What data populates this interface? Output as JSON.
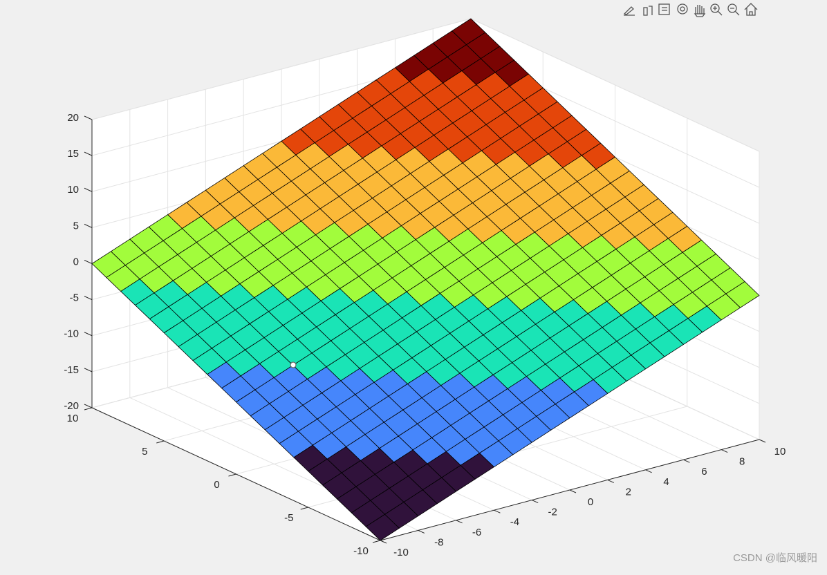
{
  "chart_data": {
    "type": "surface",
    "x": [
      -10,
      -9,
      -8,
      -7,
      -6,
      -5,
      -4,
      -3,
      -2,
      -1,
      0,
      1,
      2,
      3,
      4,
      5,
      6,
      7,
      8,
      9,
      10
    ],
    "y": [
      -10,
      -9,
      -8,
      -7,
      -6,
      -5,
      -4,
      -3,
      -2,
      -1,
      0,
      1,
      2,
      3,
      4,
      5,
      6,
      7,
      8,
      9,
      10
    ],
    "z": [
      [
        -20,
        -19,
        -18,
        -17,
        -16,
        -15,
        -14,
        -13,
        -12,
        -11,
        -10,
        -9,
        -8,
        -7,
        -6,
        -5,
        -4,
        -3,
        -2,
        -1,
        0
      ],
      [
        -19,
        -18,
        -17,
        -16,
        -15,
        -14,
        -13,
        -12,
        -11,
        -10,
        -9,
        -8,
        -7,
        -6,
        -5,
        -4,
        -3,
        -2,
        -1,
        0,
        1
      ],
      [
        -18,
        -17,
        -16,
        -15,
        -14,
        -13,
        -12,
        -11,
        -10,
        -9,
        -8,
        -7,
        -6,
        -5,
        -4,
        -3,
        -2,
        -1,
        0,
        1,
        2
      ],
      [
        -17,
        -16,
        -15,
        -14,
        -13,
        -12,
        -11,
        -10,
        -9,
        -8,
        -7,
        -6,
        -5,
        -4,
        -3,
        -2,
        -1,
        0,
        1,
        2,
        3
      ],
      [
        -16,
        -15,
        -14,
        -13,
        -12,
        -11,
        -10,
        -9,
        -8,
        -7,
        -6,
        -5,
        -4,
        -3,
        -2,
        -1,
        0,
        1,
        2,
        3,
        4
      ],
      [
        -15,
        -14,
        -13,
        -12,
        -11,
        -10,
        -9,
        -8,
        -7,
        -6,
        -5,
        -4,
        -3,
        -2,
        -1,
        0,
        1,
        2,
        3,
        4,
        5
      ],
      [
        -14,
        -13,
        -12,
        -11,
        -10,
        -9,
        -8,
        -7,
        -6,
        -5,
        -4,
        -3,
        -2,
        -1,
        0,
        1,
        2,
        3,
        4,
        5,
        6
      ],
      [
        -13,
        -12,
        -11,
        -10,
        -9,
        -8,
        -7,
        -6,
        -5,
        -4,
        -3,
        -2,
        -1,
        0,
        1,
        2,
        3,
        4,
        5,
        6,
        7
      ],
      [
        -12,
        -11,
        -10,
        -9,
        -8,
        -7,
        -6,
        -5,
        -4,
        -3,
        -2,
        -1,
        0,
        1,
        2,
        3,
        4,
        5,
        6,
        7,
        8
      ],
      [
        -11,
        -10,
        -9,
        -8,
        -7,
        -6,
        -5,
        -4,
        -3,
        -2,
        -1,
        0,
        1,
        2,
        3,
        4,
        5,
        6,
        7,
        8,
        9
      ],
      [
        -10,
        -9,
        -8,
        -7,
        -6,
        -5,
        -4,
        -3,
        -2,
        -1,
        0,
        1,
        2,
        3,
        4,
        5,
        6,
        7,
        8,
        9,
        10
      ],
      [
        -9,
        -8,
        -7,
        -6,
        -5,
        -4,
        -3,
        -2,
        -1,
        0,
        1,
        2,
        3,
        4,
        5,
        6,
        7,
        8,
        9,
        10,
        11
      ],
      [
        -8,
        -7,
        -6,
        -5,
        -4,
        -3,
        -2,
        -1,
        0,
        1,
        2,
        3,
        4,
        5,
        6,
        7,
        8,
        9,
        10,
        11,
        12
      ],
      [
        -7,
        -6,
        -5,
        -4,
        -3,
        -2,
        -1,
        0,
        1,
        2,
        3,
        4,
        5,
        6,
        7,
        8,
        9,
        10,
        11,
        12,
        13
      ],
      [
        -6,
        -5,
        -4,
        -3,
        -2,
        -1,
        0,
        1,
        2,
        3,
        4,
        5,
        6,
        7,
        8,
        9,
        10,
        11,
        12,
        13,
        14
      ],
      [
        -5,
        -4,
        -3,
        -2,
        -1,
        0,
        1,
        2,
        3,
        4,
        5,
        6,
        7,
        8,
        9,
        10,
        11,
        12,
        13,
        14,
        15
      ],
      [
        -4,
        -3,
        -2,
        -1,
        0,
        1,
        2,
        3,
        4,
        5,
        6,
        7,
        8,
        9,
        10,
        11,
        12,
        13,
        14,
        15,
        16
      ],
      [
        -3,
        -2,
        -1,
        0,
        1,
        2,
        3,
        4,
        5,
        6,
        7,
        8,
        9,
        10,
        11,
        12,
        13,
        14,
        15,
        16,
        17
      ],
      [
        -2,
        -1,
        0,
        1,
        2,
        3,
        4,
        5,
        6,
        7,
        8,
        9,
        10,
        11,
        12,
        13,
        14,
        15,
        16,
        17,
        18
      ],
      [
        -1,
        0,
        1,
        2,
        3,
        4,
        5,
        6,
        7,
        8,
        9,
        10,
        11,
        12,
        13,
        14,
        15,
        16,
        17,
        18,
        19
      ],
      [
        0,
        1,
        2,
        3,
        4,
        5,
        6,
        7,
        8,
        9,
        10,
        11,
        12,
        13,
        14,
        15,
        16,
        17,
        18,
        19,
        20
      ]
    ],
    "colormap": [
      "#30123b",
      "#4686fb",
      "#1ae4b6",
      "#a2fc3c",
      "#fbb938",
      "#e4460a",
      "#7a0403"
    ],
    "xlim": [
      -10,
      10
    ],
    "ylim": [
      -10,
      10
    ],
    "zlim": [
      -20,
      20
    ],
    "xticks": [
      -10,
      -8,
      -6,
      -4,
      -2,
      0,
      2,
      4,
      6,
      8,
      10
    ],
    "yticks": [
      -10,
      -5,
      0,
      5,
      10
    ],
    "zticks": [
      -20,
      -15,
      -10,
      -5,
      0,
      5,
      10,
      15,
      20
    ],
    "grid": true
  },
  "watermark": "CSDN @临风暖阳"
}
